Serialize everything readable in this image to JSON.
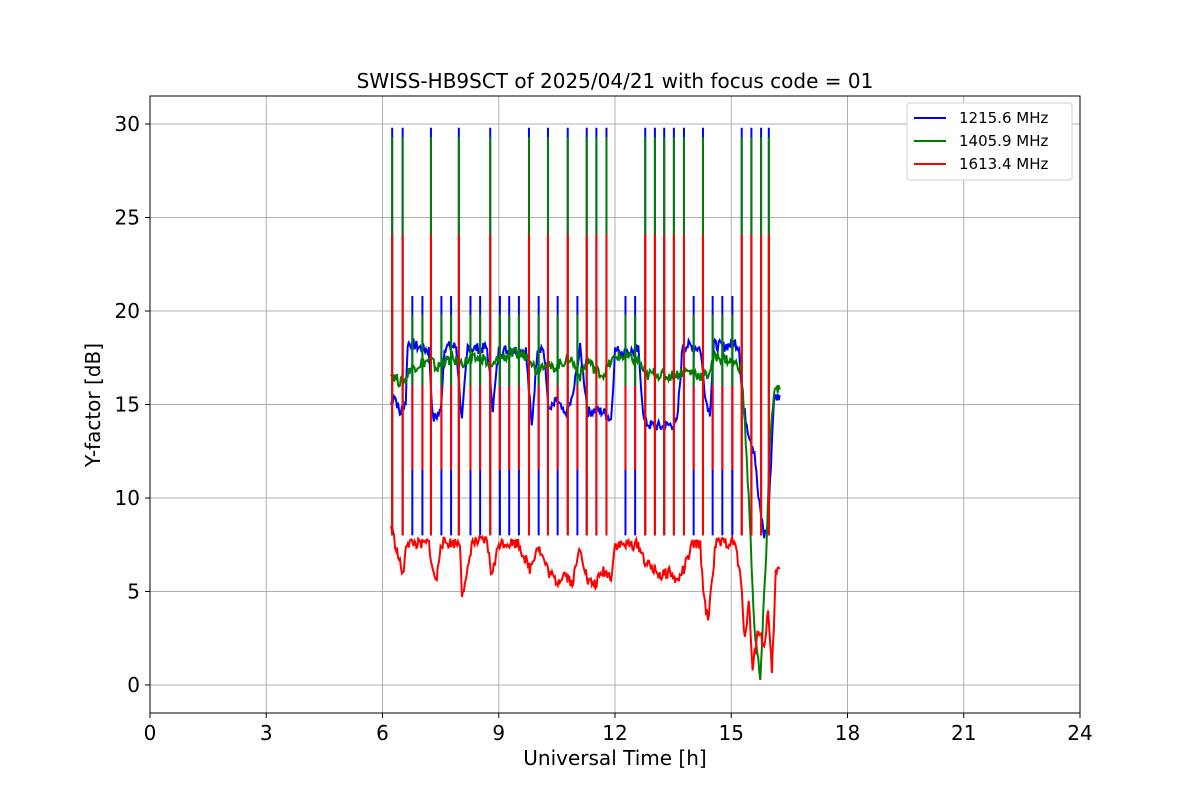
{
  "chart_data": {
    "type": "line",
    "title": "SWISS-HB9SCT of 2025/04/21 with focus code = 01",
    "xlabel": "Universal Time [h]",
    "ylabel": "Y-factor [dB]",
    "xlim": [
      0,
      24
    ],
    "ylim": [
      -1.5,
      31.5
    ],
    "xticks": [
      0,
      3,
      6,
      9,
      12,
      15,
      18,
      21,
      24
    ],
    "yticks": [
      0,
      5,
      10,
      15,
      20,
      25,
      30
    ],
    "grid": true,
    "legend_position": "top-right",
    "spike_times": [
      6.25,
      6.52,
      7.25,
      7.97,
      8.78,
      9.78,
      10.27,
      10.78,
      11.27,
      11.52,
      11.78,
      12.78,
      13.03,
      13.27,
      13.52,
      13.78,
      14.27,
      15.27,
      15.52,
      15.77,
      15.97
    ],
    "series": [
      {
        "name": "1215.6 MHz",
        "color": "#0000ff",
        "x": [
          6.22,
          6.3,
          6.45,
          6.6,
          6.65,
          6.8,
          7.0,
          7.2,
          7.3,
          7.5,
          7.6,
          7.9,
          8.05,
          8.2,
          8.35,
          8.7,
          8.85,
          9.0,
          9.5,
          9.7,
          9.85,
          10.0,
          10.15,
          10.3,
          10.5,
          10.7,
          10.9,
          11.1,
          11.3,
          11.5,
          11.7,
          11.9,
          12.0,
          12.3,
          12.6,
          12.75,
          12.9,
          13.2,
          13.4,
          13.6,
          13.75,
          14.0,
          14.2,
          14.35,
          14.45,
          14.55,
          14.8,
          15.1,
          15.2,
          15.3,
          15.45,
          15.6,
          15.7,
          15.85,
          15.95,
          16.1,
          16.25
        ],
        "y": [
          15.0,
          15.6,
          14.5,
          15.2,
          18.3,
          18.2,
          18.0,
          17.9,
          14.2,
          14.6,
          18.1,
          18.1,
          14.1,
          18.1,
          18.0,
          18.0,
          14.8,
          17.9,
          17.9,
          17.9,
          13.8,
          18.1,
          18.0,
          14.6,
          15.2,
          14.4,
          15.3,
          18.0,
          14.6,
          14.7,
          14.6,
          14.2,
          17.9,
          17.8,
          17.9,
          14.1,
          13.9,
          13.8,
          13.9,
          14.0,
          18.2,
          18.1,
          18.0,
          15.2,
          14.6,
          18.2,
          18.1,
          18.3,
          18.1,
          15.0,
          13.5,
          12.5,
          10.0,
          8.0,
          8.5,
          15.3,
          15.5
        ]
      },
      {
        "name": "1405.9 MHz",
        "color": "#008000",
        "x": [
          6.22,
          6.3,
          6.45,
          6.6,
          6.7,
          7.0,
          7.25,
          7.4,
          7.55,
          7.8,
          8.0,
          8.3,
          8.6,
          8.8,
          9.0,
          9.4,
          9.8,
          9.95,
          10.2,
          10.35,
          10.6,
          10.85,
          11.1,
          11.3,
          11.5,
          11.7,
          11.9,
          12.05,
          12.3,
          12.6,
          12.8,
          13.0,
          13.3,
          13.6,
          13.8,
          14.0,
          14.25,
          14.4,
          14.6,
          14.9,
          15.25,
          15.35,
          15.45,
          15.6,
          15.75,
          15.9,
          16.0,
          16.1,
          16.25
        ],
        "y": [
          16.8,
          16.5,
          16.2,
          16.3,
          16.9,
          17.2,
          17.4,
          16.9,
          17.3,
          17.4,
          17.2,
          17.4,
          17.5,
          16.9,
          17.5,
          17.7,
          17.6,
          16.8,
          17.3,
          16.9,
          17.2,
          17.5,
          16.5,
          17.4,
          16.8,
          16.6,
          17.3,
          17.6,
          17.5,
          17.4,
          16.5,
          16.7,
          16.5,
          16.6,
          16.8,
          16.7,
          16.5,
          16.6,
          17.6,
          17.4,
          17.0,
          14.0,
          10.0,
          3.0,
          0.2,
          7.0,
          13.0,
          15.7,
          15.8
        ]
      },
      {
        "name": "1613.4 MHz",
        "color": "#ff0000",
        "x": [
          6.22,
          6.3,
          6.45,
          6.55,
          6.6,
          6.8,
          7.0,
          7.2,
          7.3,
          7.4,
          7.5,
          8.0,
          8.05,
          8.15,
          8.3,
          8.7,
          8.8,
          8.9,
          9.0,
          9.5,
          9.8,
          9.9,
          10.0,
          10.3,
          10.5,
          10.7,
          10.9,
          11.1,
          11.3,
          11.5,
          11.7,
          11.9,
          12.0,
          12.3,
          12.6,
          12.8,
          13.0,
          13.2,
          13.4,
          13.6,
          13.8,
          14.0,
          14.2,
          14.3,
          14.4,
          14.6,
          15.1,
          15.25,
          15.35,
          15.45,
          15.55,
          15.7,
          15.85,
          15.95,
          16.05,
          16.15,
          16.25
        ],
        "y": [
          8.5,
          7.8,
          6.5,
          5.8,
          7.6,
          7.6,
          7.5,
          7.6,
          6.0,
          5.6,
          7.6,
          7.6,
          5.0,
          5.4,
          7.6,
          7.7,
          6.0,
          6.5,
          7.6,
          7.6,
          6.2,
          6.8,
          7.5,
          6.0,
          5.5,
          6.0,
          5.4,
          7.4,
          5.5,
          5.4,
          6.1,
          5.8,
          7.5,
          7.5,
          7.5,
          6.5,
          6.2,
          5.8,
          6.1,
          5.5,
          6.3,
          7.5,
          7.5,
          4.5,
          3.5,
          7.6,
          7.6,
          5.5,
          2.5,
          4.5,
          1.0,
          3.0,
          2.0,
          4.0,
          0.5,
          6.0,
          6.2
        ]
      }
    ],
    "spikes": [
      {
        "series": "1215.6 MHz",
        "times": [
          6.25,
          6.52,
          7.25,
          7.97,
          8.78,
          9.78,
          10.27,
          10.78,
          11.27,
          11.52,
          11.78,
          12.78,
          13.03,
          13.27,
          13.52,
          13.78,
          14.27,
          15.27,
          15.52,
          15.77,
          15.97
        ],
        "peak": 29.8
      },
      {
        "series": "1405.9 MHz",
        "times": [
          6.25,
          6.52,
          7.25,
          7.97,
          8.78,
          9.78,
          10.27,
          10.78,
          11.27,
          11.52,
          11.78,
          12.78,
          13.03,
          13.27,
          13.52,
          13.78,
          14.27,
          15.27,
          15.52,
          15.77,
          15.97
        ],
        "peak": 29.3
      },
      {
        "series": "1613.4 MHz",
        "times": [
          6.25,
          6.52,
          7.25,
          7.97,
          8.78,
          9.78,
          10.27,
          10.78,
          11.27,
          11.52,
          11.78,
          12.78,
          13.03,
          13.27,
          13.52,
          13.78,
          14.27,
          15.27,
          15.52,
          15.77,
          15.97
        ],
        "peak": 24.1
      }
    ],
    "secondary_spikes": [
      {
        "series": "1215.6 MHz",
        "times": [
          6.77,
          7.03,
          7.52,
          7.77,
          8.27,
          8.52,
          9.03,
          9.27,
          9.52,
          10.03,
          10.52,
          11.03,
          12.27,
          12.52,
          14.03,
          14.52,
          14.77,
          15.03
        ],
        "peak": 20.8
      },
      {
        "series": "1405.9 MHz",
        "times": [
          6.77,
          7.03,
          7.52,
          7.77,
          8.27,
          8.52,
          9.03,
          9.27,
          9.52,
          10.03,
          10.52,
          11.03,
          12.27,
          12.52,
          14.03,
          14.52,
          14.77,
          15.03
        ],
        "peak": 19.8
      },
      {
        "series": "1613.4 MHz",
        "times": [
          6.77,
          7.03,
          7.52,
          7.77,
          8.27,
          8.52,
          9.03,
          9.27,
          9.52,
          10.03,
          10.52,
          11.03,
          12.27,
          12.52,
          14.03,
          14.52,
          14.77,
          15.03
        ],
        "peak": 11.5
      }
    ]
  }
}
